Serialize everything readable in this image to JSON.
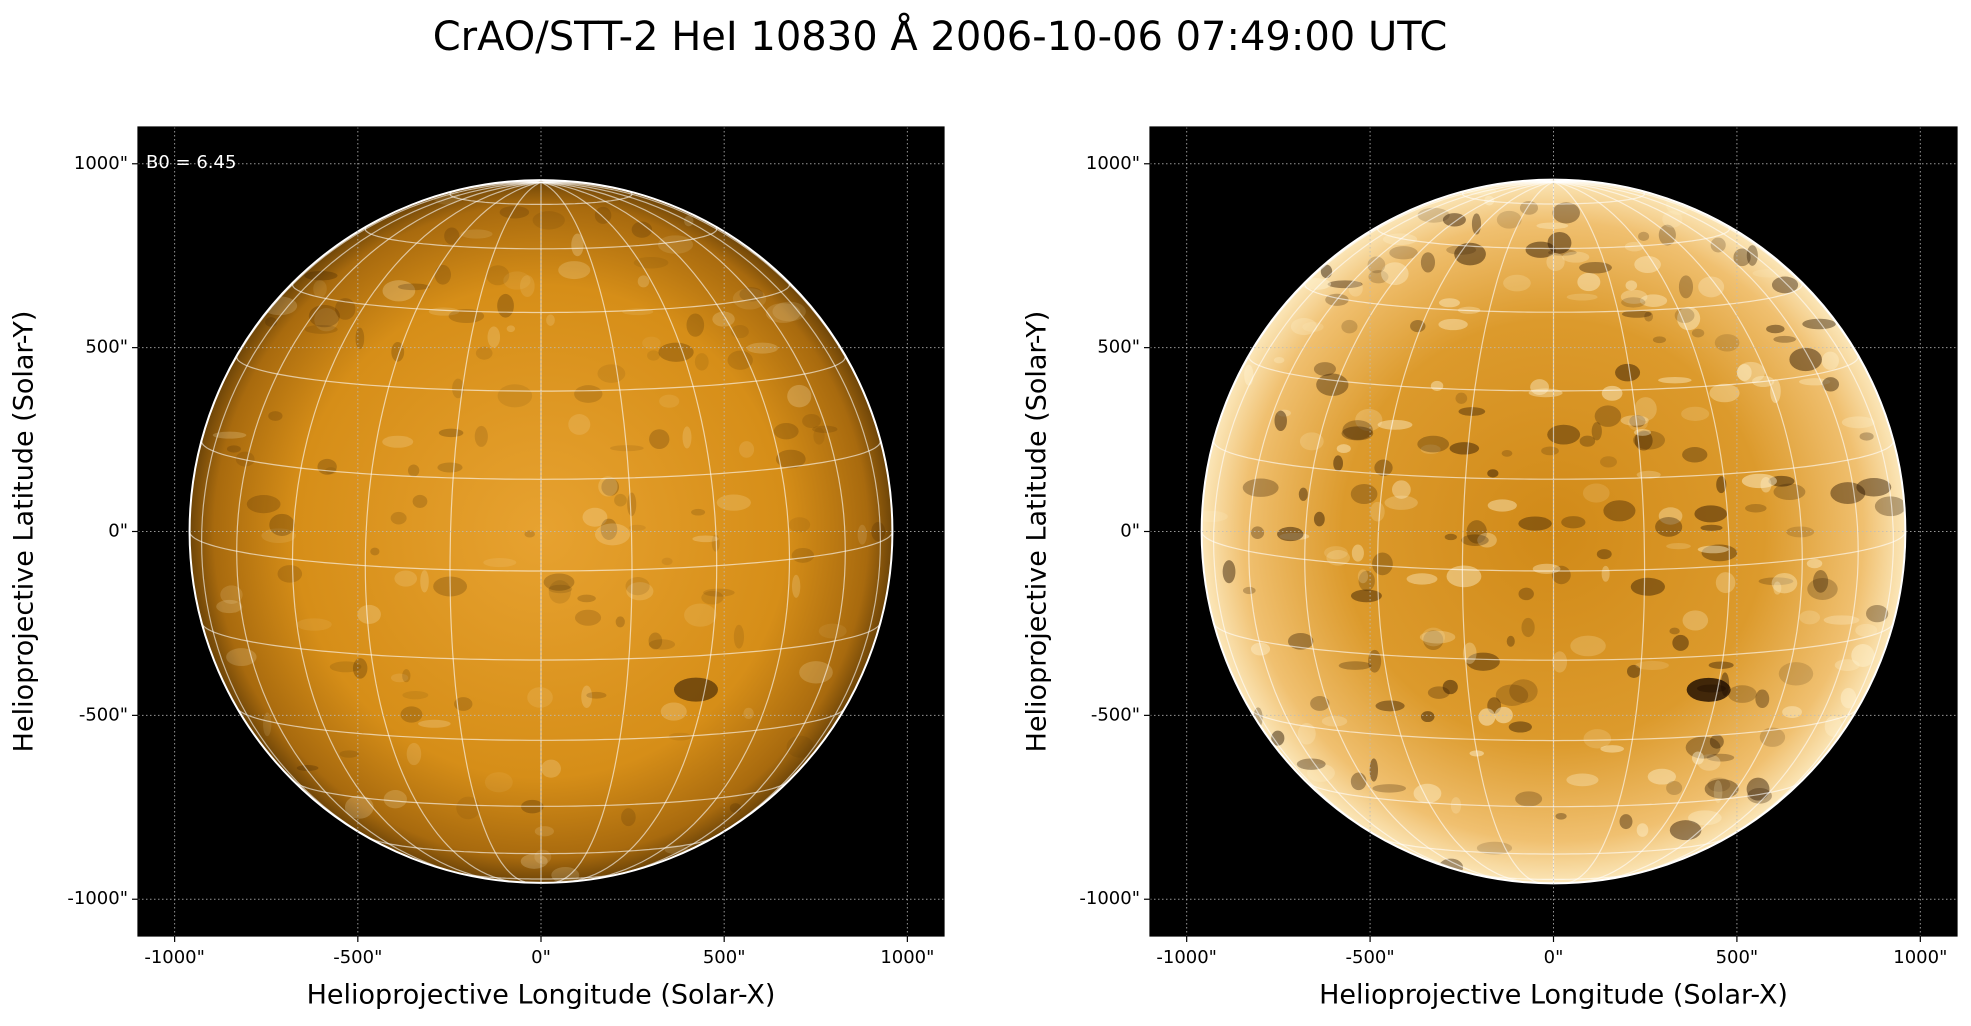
{
  "title": "CrAO/STT-2 HeI 10830 Å 2006-10-06 07:49:00 UTC",
  "chart_data": [
    {
      "type": "heatmap",
      "xlabel": "Helioprojective Longitude (Solar-X)",
      "ylabel": "Helioprojective Latitude (Solar-Y)",
      "annotation": "B0 = 6.45",
      "xlim": [
        -1100,
        1100
      ],
      "ylim": [
        -1100,
        1100
      ],
      "xticks": [
        {
          "value": -1000,
          "label": "-1000\""
        },
        {
          "value": -500,
          "label": "-500\""
        },
        {
          "value": 0,
          "label": "0\""
        },
        {
          "value": 500,
          "label": "500\""
        },
        {
          "value": 1000,
          "label": "1000\""
        }
      ],
      "yticks": [
        {
          "value": -1000,
          "label": "-1000\""
        },
        {
          "value": -500,
          "label": "-500\""
        },
        {
          "value": 0,
          "label": "0\""
        },
        {
          "value": 500,
          "label": "500\""
        },
        {
          "value": 1000,
          "label": "1000\""
        }
      ],
      "grid": true
    },
    {
      "type": "heatmap",
      "xlabel": "Helioprojective Longitude (Solar-X)",
      "ylabel": "Helioprojective Latitude (Solar-Y)",
      "xlim": [
        -1100,
        1100
      ],
      "ylim": [
        -1100,
        1100
      ],
      "xticks": [
        {
          "value": -1000,
          "label": "-1000\""
        },
        {
          "value": -500,
          "label": "-500\""
        },
        {
          "value": 0,
          "label": "0\""
        },
        {
          "value": 500,
          "label": "500\""
        },
        {
          "value": 1000,
          "label": "1000\""
        }
      ],
      "yticks": [
        {
          "value": -1000,
          "label": "-1000\""
        },
        {
          "value": -500,
          "label": "-500\""
        },
        {
          "value": 0,
          "label": "0\""
        },
        {
          "value": 500,
          "label": "500\""
        },
        {
          "value": 1000,
          "label": "1000\""
        }
      ],
      "grid": true
    }
  ]
}
